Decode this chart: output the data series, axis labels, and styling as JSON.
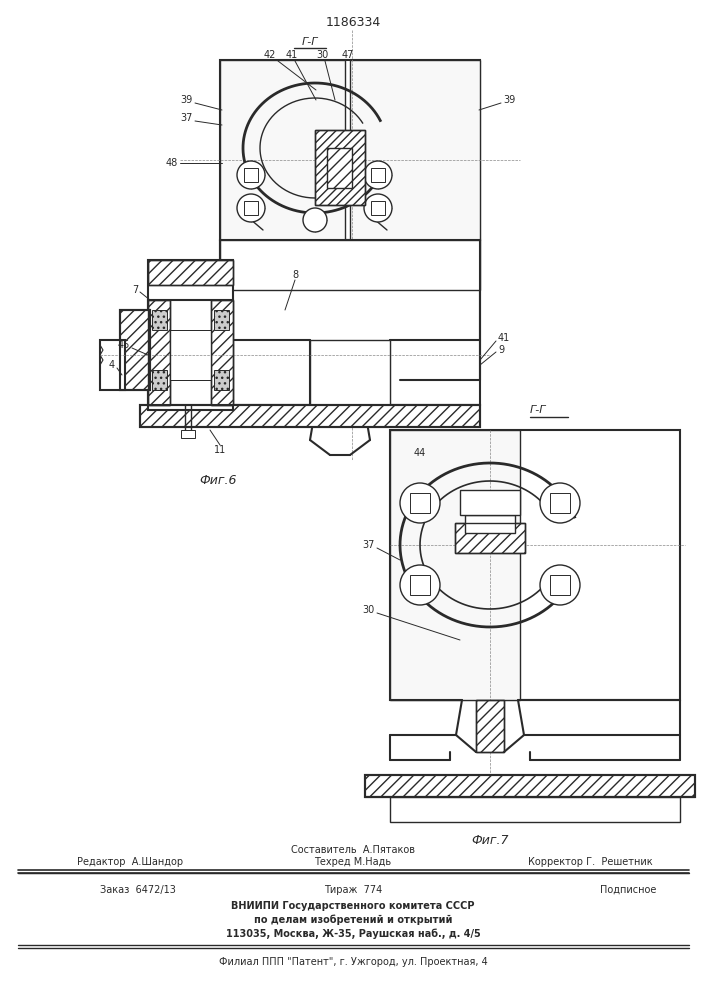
{
  "patent_number": "1186334",
  "fig6_label": "Фиг.6",
  "fig7_label": "Фиг.7",
  "section_label": "Г-Г",
  "line_color": "#2a2a2a",
  "footer": {
    "editor": "Редактор  А.Шандор",
    "composer": "Составитель  А.Пятаков",
    "techred": "Техред М.Надь",
    "corrector": "Корректор Г.  Решетник",
    "order": "Заказ  6472/13",
    "tirazh": "Тираж  774",
    "podpisnoe": "Подписное",
    "vniip1": "ВНИИПИ Государственного комитета СССР",
    "vniip2": "по делам изобретений и открытий",
    "vniip3": "113035, Москва, Ж-35, Раушская наб., д. 4/5",
    "filial": "Филиал ППП \"Патент\", г. Ужгород, ул. Проектная, 4"
  }
}
